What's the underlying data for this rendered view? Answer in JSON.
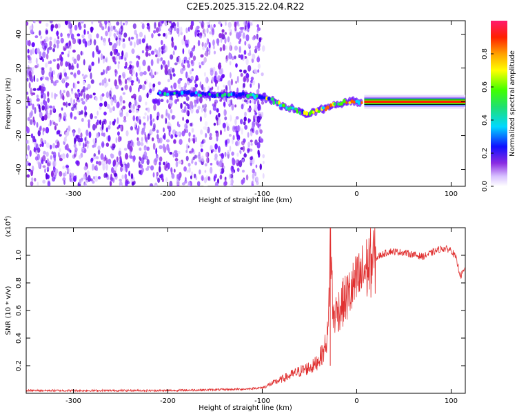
{
  "title": "C2E5.2025.315.22.04.R22",
  "chart_data": [
    {
      "type": "heatmap",
      "name": "spectrogram",
      "xlabel": "Height of straight line (km)",
      "ylabel": "Frequency (Hz)",
      "xlim": [
        -350,
        115
      ],
      "ylim": [
        -50,
        48
      ],
      "x_ticks": [
        -300,
        -200,
        -100,
        0,
        100
      ],
      "y_ticks": [
        -40,
        -20,
        0,
        20,
        40
      ],
      "noise_region_x": [
        -350,
        -100
      ],
      "signal_trace": [
        {
          "x": -210,
          "y": 5
        },
        {
          "x": -180,
          "y": 5
        },
        {
          "x": -150,
          "y": 4
        },
        {
          "x": -120,
          "y": 4
        },
        {
          "x": -100,
          "y": 3
        },
        {
          "x": -90,
          "y": 1
        },
        {
          "x": -80,
          "y": -2
        },
        {
          "x": -70,
          "y": -4
        },
        {
          "x": -60,
          "y": -6
        },
        {
          "x": -50,
          "y": -7
        },
        {
          "x": -40,
          "y": -5
        },
        {
          "x": -30,
          "y": -3
        },
        {
          "x": -20,
          "y": -1
        },
        {
          "x": -10,
          "y": 0
        },
        {
          "x": 0,
          "y": 0
        },
        {
          "x": 115,
          "y": 0
        }
      ],
      "colorbar": {
        "label": "Normalized spectral amplitude",
        "range": [
          0,
          1
        ],
        "ticks": [
          "0.0",
          "0.2",
          "0.4",
          "0.6",
          "0.8"
        ]
      }
    },
    {
      "type": "line",
      "name": "snr",
      "xlabel": "Height of straight line (km)",
      "ylabel": "SNR (10 * v/v)",
      "scale_label": "(x10",
      "scale_exp": "4",
      "scale_close": ")",
      "xlim": [
        -350,
        115
      ],
      "ylim": [
        0,
        1.2
      ],
      "x_ticks": [
        -300,
        -200,
        -100,
        0,
        100
      ],
      "y_ticks": [
        "0.2",
        "0.4",
        "0.6",
        "0.8",
        "1.0"
      ],
      "color": "#e03030",
      "series": [
        {
          "name": "SNR",
          "x": [
            -350,
            -200,
            -120,
            -100,
            -80,
            -60,
            -45,
            -35,
            -30,
            -28,
            -25,
            -15,
            -5,
            5,
            15,
            25,
            35,
            50,
            70,
            90,
            100,
            105,
            110,
            115
          ],
          "y": [
            0.02,
            0.02,
            0.03,
            0.04,
            0.1,
            0.16,
            0.2,
            0.3,
            0.45,
            1.18,
            0.55,
            0.65,
            0.75,
            0.85,
            0.95,
            1.0,
            1.03,
            1.02,
            0.99,
            1.05,
            1.04,
            0.98,
            0.85,
            0.9
          ]
        }
      ],
      "spike": {
        "x": -28,
        "y": 1.18
      }
    }
  ]
}
